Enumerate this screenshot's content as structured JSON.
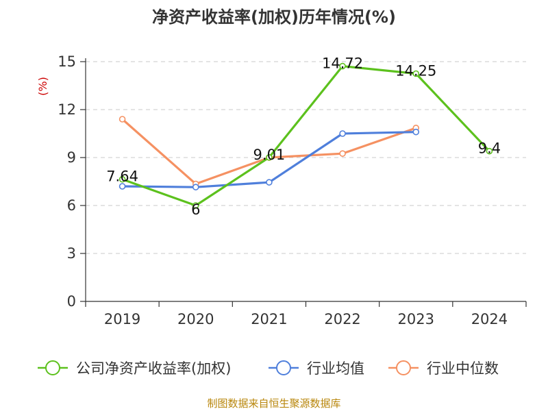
{
  "chart_data": {
    "type": "line",
    "title": "净资产收益率(加权)历年情况(%)",
    "ylabel": "(%)",
    "xlabel": "",
    "categories": [
      "2019",
      "2020",
      "2021",
      "2022",
      "2023",
      "2024"
    ],
    "ylim": [
      0,
      15
    ],
    "yticks": [
      0,
      3,
      6,
      9,
      12,
      15
    ],
    "grid": true,
    "legend_position": "bottom",
    "series": [
      {
        "name": "公司净资产收益率(加权)",
        "color": "#5cc11d",
        "values": [
          7.64,
          6,
          9.01,
          14.72,
          14.25,
          9.4
        ],
        "labels": [
          "7.64",
          "6",
          "9.01",
          "14.72",
          "14.25",
          "9.4"
        ]
      },
      {
        "name": "行业均值",
        "color": "#4f7fdb",
        "values": [
          7.2,
          7.15,
          7.45,
          10.5,
          10.6,
          null
        ]
      },
      {
        "name": "行业中位数",
        "color": "#f59162",
        "values": [
          11.4,
          7.35,
          9.0,
          9.25,
          10.85,
          null
        ]
      }
    ]
  },
  "source": "制图数据来自恒生聚源数据库"
}
